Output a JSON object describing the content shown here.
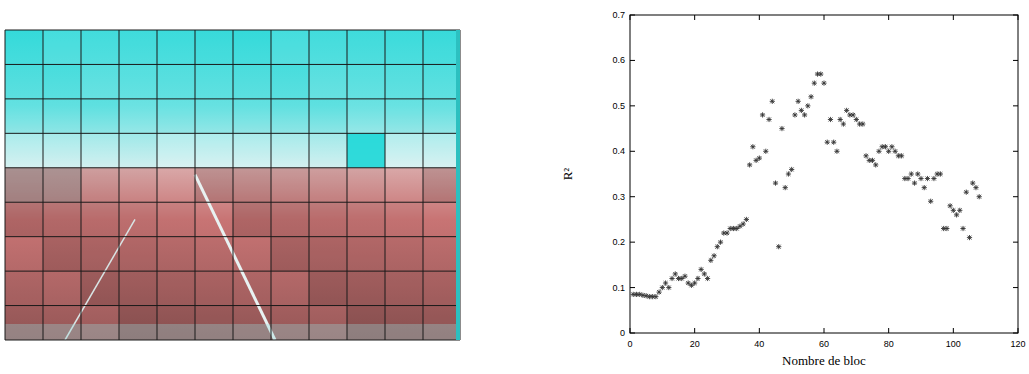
{
  "chart_data": {
    "type": "scatter",
    "xlabel": "Nombre de bloc",
    "ylabel": "R²",
    "marker": "asterisk",
    "color": "#333333",
    "xlim": [
      0,
      120
    ],
    "xticks": [
      0,
      20,
      40,
      60,
      80,
      100,
      120
    ],
    "ylim": [
      0,
      0.7
    ],
    "yticks": [
      0,
      0.1,
      0.2,
      0.3,
      0.4,
      0.5,
      0.6,
      0.7
    ],
    "x": [
      1,
      2,
      3,
      4,
      5,
      6,
      7,
      8,
      9,
      10,
      11,
      12,
      13,
      14,
      15,
      16,
      17,
      18,
      19,
      20,
      21,
      22,
      23,
      24,
      25,
      26,
      27,
      28,
      29,
      30,
      31,
      32,
      33,
      34,
      35,
      36,
      37,
      38,
      39,
      40,
      41,
      42,
      43,
      44,
      45,
      46,
      47,
      48,
      49,
      50,
      51,
      52,
      53,
      54,
      55,
      56,
      57,
      58,
      59,
      60,
      61,
      62,
      63,
      64,
      65,
      66,
      67,
      68,
      69,
      70,
      71,
      72,
      73,
      74,
      75,
      76,
      77,
      78,
      79,
      80,
      81,
      82,
      83,
      84,
      85,
      86,
      87,
      88,
      89,
      90,
      91,
      92,
      93,
      94,
      95,
      96,
      97,
      98,
      99,
      100,
      101,
      102,
      103,
      104,
      105,
      106,
      107,
      108
    ],
    "values": [
      0.085,
      0.085,
      0.085,
      0.083,
      0.082,
      0.08,
      0.08,
      0.08,
      0.09,
      0.1,
      0.11,
      0.1,
      0.12,
      0.13,
      0.12,
      0.12,
      0.125,
      0.11,
      0.105,
      0.11,
      0.12,
      0.14,
      0.13,
      0.12,
      0.16,
      0.17,
      0.19,
      0.2,
      0.22,
      0.22,
      0.23,
      0.23,
      0.23,
      0.235,
      0.24,
      0.25,
      0.37,
      0.41,
      0.38,
      0.385,
      0.48,
      0.4,
      0.47,
      0.51,
      0.33,
      0.19,
      0.45,
      0.32,
      0.35,
      0.36,
      0.48,
      0.51,
      0.49,
      0.48,
      0.5,
      0.52,
      0.55,
      0.57,
      0.57,
      0.55,
      0.42,
      0.47,
      0.42,
      0.4,
      0.47,
      0.46,
      0.49,
      0.48,
      0.48,
      0.47,
      0.46,
      0.46,
      0.39,
      0.38,
      0.38,
      0.37,
      0.4,
      0.41,
      0.41,
      0.4,
      0.41,
      0.4,
      0.39,
      0.39,
      0.34,
      0.34,
      0.35,
      0.33,
      0.35,
      0.34,
      0.32,
      0.34,
      0.29,
      0.34,
      0.35,
      0.35,
      0.23,
      0.23,
      0.28,
      0.27,
      0.26,
      0.27,
      0.23,
      0.31,
      0.21,
      0.33,
      0.32,
      0.3
    ]
  }
}
